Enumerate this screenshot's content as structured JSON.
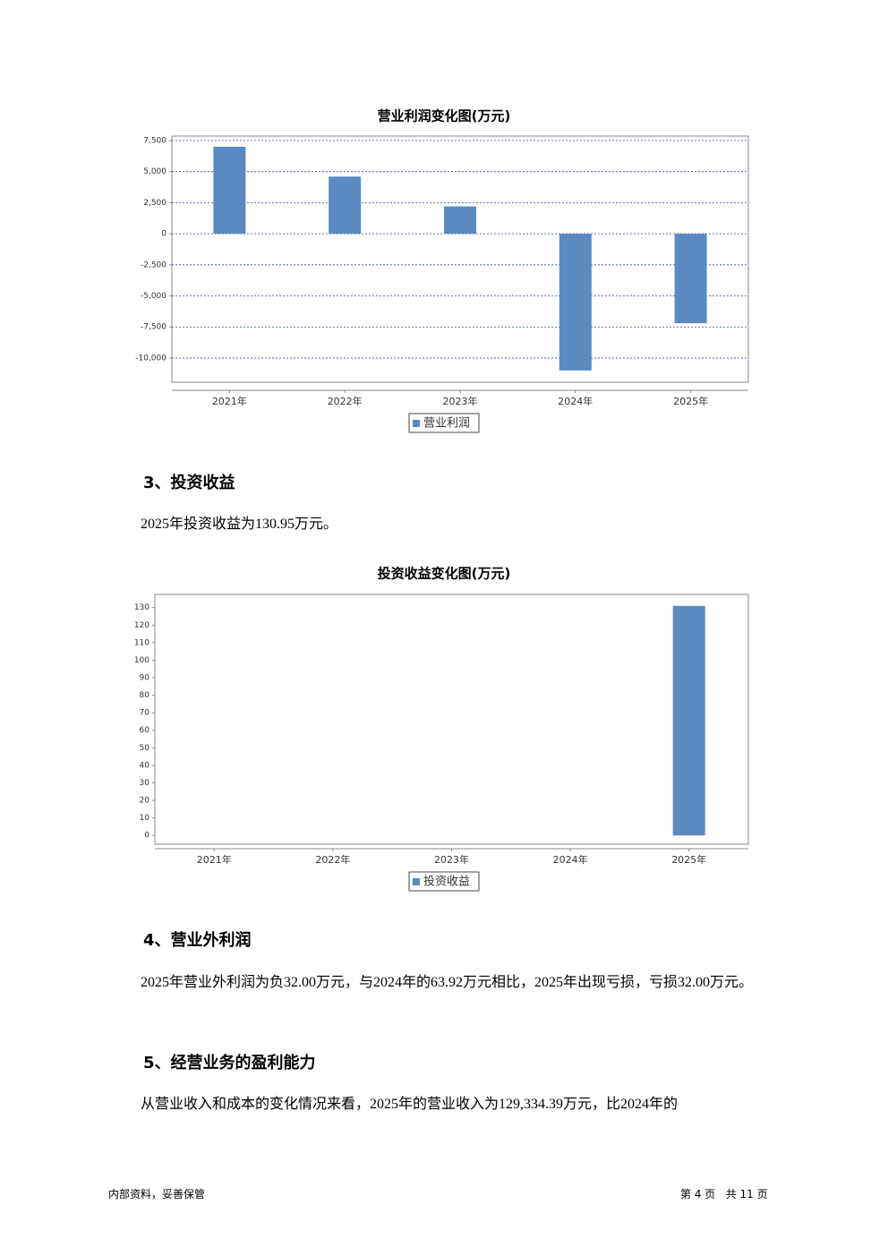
{
  "chart_data": [
    {
      "type": "bar",
      "title": "营业利润变化图(万元)",
      "categories": [
        "2021年",
        "2022年",
        "2023年",
        "2024年",
        "2025年"
      ],
      "series": [
        {
          "name": "营业利润",
          "color": "#5a8ac0",
          "values": [
            7000,
            4600,
            2200,
            -11000,
            -7200
          ]
        }
      ],
      "ylim": [
        -11950,
        7860
      ],
      "yticks": [
        {
          "value": 7500,
          "label": "7,500"
        },
        {
          "value": 5000,
          "label": "5,000"
        },
        {
          "value": 2500,
          "label": "2,500"
        },
        0,
        {
          "value": -2500,
          "label": "-2,500"
        },
        {
          "value": -5000,
          "label": "-5,000"
        },
        {
          "value": -7500,
          "label": "-7,500"
        },
        {
          "value": -10000,
          "label": "-10,000"
        }
      ],
      "grid": true
    },
    {
      "type": "bar",
      "title": "投资收益变化图(万元)",
      "categories": [
        "2021年",
        "2022年",
        "2023年",
        "2024年",
        "2025年"
      ],
      "series": [
        {
          "name": "投资收益",
          "color": "#5a8ac0",
          "values": [
            null,
            null,
            null,
            null,
            130.95
          ]
        }
      ],
      "ylim": [
        -5,
        137.5
      ],
      "yticks": [
        0,
        10,
        20,
        30,
        40,
        50,
        60,
        70,
        80,
        90,
        100,
        110,
        120,
        130
      ],
      "grid": false
    }
  ],
  "sections": [
    {
      "heading": "3、投资收益",
      "text": "2025年投资收益为130.95万元。"
    },
    {
      "heading": "4、营业外利润",
      "text": "2025年营业外利润为负32.00万元，与2024年的63.92万元相比，2025年出现亏损，亏损32.00万元。"
    },
    {
      "heading": "5、经营业务的盈利能力",
      "text": "从营业收入和成本的变化情况来看，2025年的营业收入为129,334.39万元，比2024年的"
    }
  ],
  "footer": {
    "left": "内部资料，妥善保管",
    "page": "第 4 页   共 11 页"
  }
}
